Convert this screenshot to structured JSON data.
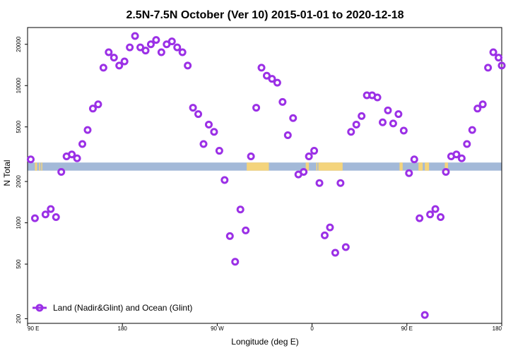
{
  "chart_data": {
    "type": "scatter",
    "title": "2.5N-7.5N October (Ver 10)   2015-01-01 to 2020-12-18",
    "xlabel": "Longitude (deg E)",
    "ylabel": "N Total",
    "xlim": [
      90,
      540
    ],
    "ylim": [
      185,
      26500
    ],
    "y_scale": "log",
    "x_ticks": [
      {
        "value": 90,
        "label": "90 E"
      },
      {
        "value": 180,
        "label": "180"
      },
      {
        "value": 270,
        "label": "90 W"
      },
      {
        "value": 360,
        "label": "0"
      },
      {
        "value": 450,
        "label": "90 E"
      },
      {
        "value": 540,
        "label": "180"
      }
    ],
    "y_ticks": [
      {
        "value": 200,
        "label": "200"
      },
      {
        "value": 500,
        "label": "500"
      },
      {
        "value": 1000,
        "label": "1000"
      },
      {
        "value": 2000,
        "label": "2000"
      },
      {
        "value": 5000,
        "label": "5000"
      },
      {
        "value": 10000,
        "label": "10000"
      },
      {
        "value": 20000,
        "label": "20000"
      }
    ],
    "legend": {
      "position": "bottom-left"
    },
    "series": [
      {
        "name": "Land (Nadir&Glint) and Ocean (Glint)",
        "color": "#9b30e6",
        "points": [
          [
            93,
            2900
          ],
          [
            97,
            1080
          ],
          [
            107,
            1150
          ],
          [
            112,
            1260
          ],
          [
            117,
            1100
          ],
          [
            122,
            2350
          ],
          [
            127,
            3050
          ],
          [
            132,
            3150
          ],
          [
            137,
            2950
          ],
          [
            142,
            3750
          ],
          [
            147,
            4750
          ],
          [
            152,
            6800
          ],
          [
            157,
            7300
          ],
          [
            162,
            13500
          ],
          [
            167,
            17500
          ],
          [
            172,
            16000
          ],
          [
            177,
            14000
          ],
          [
            182,
            15000
          ],
          [
            187,
            19000
          ],
          [
            192,
            23000
          ],
          [
            197,
            19000
          ],
          [
            202,
            18000
          ],
          [
            207,
            20000
          ],
          [
            212,
            21500
          ],
          [
            217,
            17500
          ],
          [
            222,
            20000
          ],
          [
            227,
            21000
          ],
          [
            232,
            19000
          ],
          [
            237,
            17500
          ],
          [
            242,
            14000
          ],
          [
            247,
            6900
          ],
          [
            252,
            6200
          ],
          [
            257,
            3750
          ],
          [
            262,
            5200
          ],
          [
            267,
            4600
          ],
          [
            272,
            3350
          ],
          [
            277,
            2050
          ],
          [
            282,
            800
          ],
          [
            287,
            520
          ],
          [
            292,
            1250
          ],
          [
            297,
            880
          ],
          [
            302,
            3050
          ],
          [
            307,
            6900
          ],
          [
            312,
            13500
          ],
          [
            317,
            11800
          ],
          [
            322,
            11200
          ],
          [
            327,
            10500
          ],
          [
            332,
            7600
          ],
          [
            337,
            4350
          ],
          [
            342,
            5800
          ],
          [
            347,
            2250
          ],
          [
            352,
            2350
          ],
          [
            357,
            3050
          ],
          [
            362,
            3350
          ],
          [
            367,
            1950
          ],
          [
            372,
            810
          ],
          [
            377,
            925
          ],
          [
            382,
            605
          ],
          [
            387,
            1950
          ],
          [
            392,
            665
          ],
          [
            397,
            4600
          ],
          [
            402,
            5200
          ],
          [
            407,
            6000
          ],
          [
            412,
            8500
          ],
          [
            417,
            8500
          ],
          [
            422,
            8200
          ],
          [
            427,
            5400
          ],
          [
            432,
            6600
          ],
          [
            437,
            5300
          ],
          [
            442,
            6200
          ],
          [
            447,
            4700
          ],
          [
            452,
            2300
          ],
          [
            457,
            2900
          ],
          [
            462,
            1080
          ],
          [
            467,
            213
          ],
          [
            472,
            1150
          ],
          [
            477,
            1260
          ],
          [
            482,
            1100
          ],
          [
            487,
            2350
          ],
          [
            492,
            3050
          ],
          [
            497,
            3150
          ],
          [
            502,
            2950
          ],
          [
            507,
            3750
          ],
          [
            512,
            4750
          ],
          [
            517,
            6800
          ],
          [
            522,
            7300
          ],
          [
            527,
            13500
          ],
          [
            532,
            17500
          ],
          [
            537,
            16000
          ],
          [
            540,
            14000
          ]
        ]
      }
    ],
    "surface_band": {
      "y_range": [
        2400,
        2750
      ],
      "ocean_color": "#a3b9d8",
      "land_color": "#f4d47c",
      "land_segments": [
        [
          97,
          99
        ],
        [
          101,
          102
        ],
        [
          103,
          104
        ],
        [
          298,
          319
        ],
        [
          354,
          357
        ],
        [
          364,
          365
        ],
        [
          366,
          389
        ],
        [
          443,
          446
        ],
        [
          461,
          465
        ],
        [
          467,
          471
        ],
        [
          486,
          489
        ]
      ]
    }
  }
}
